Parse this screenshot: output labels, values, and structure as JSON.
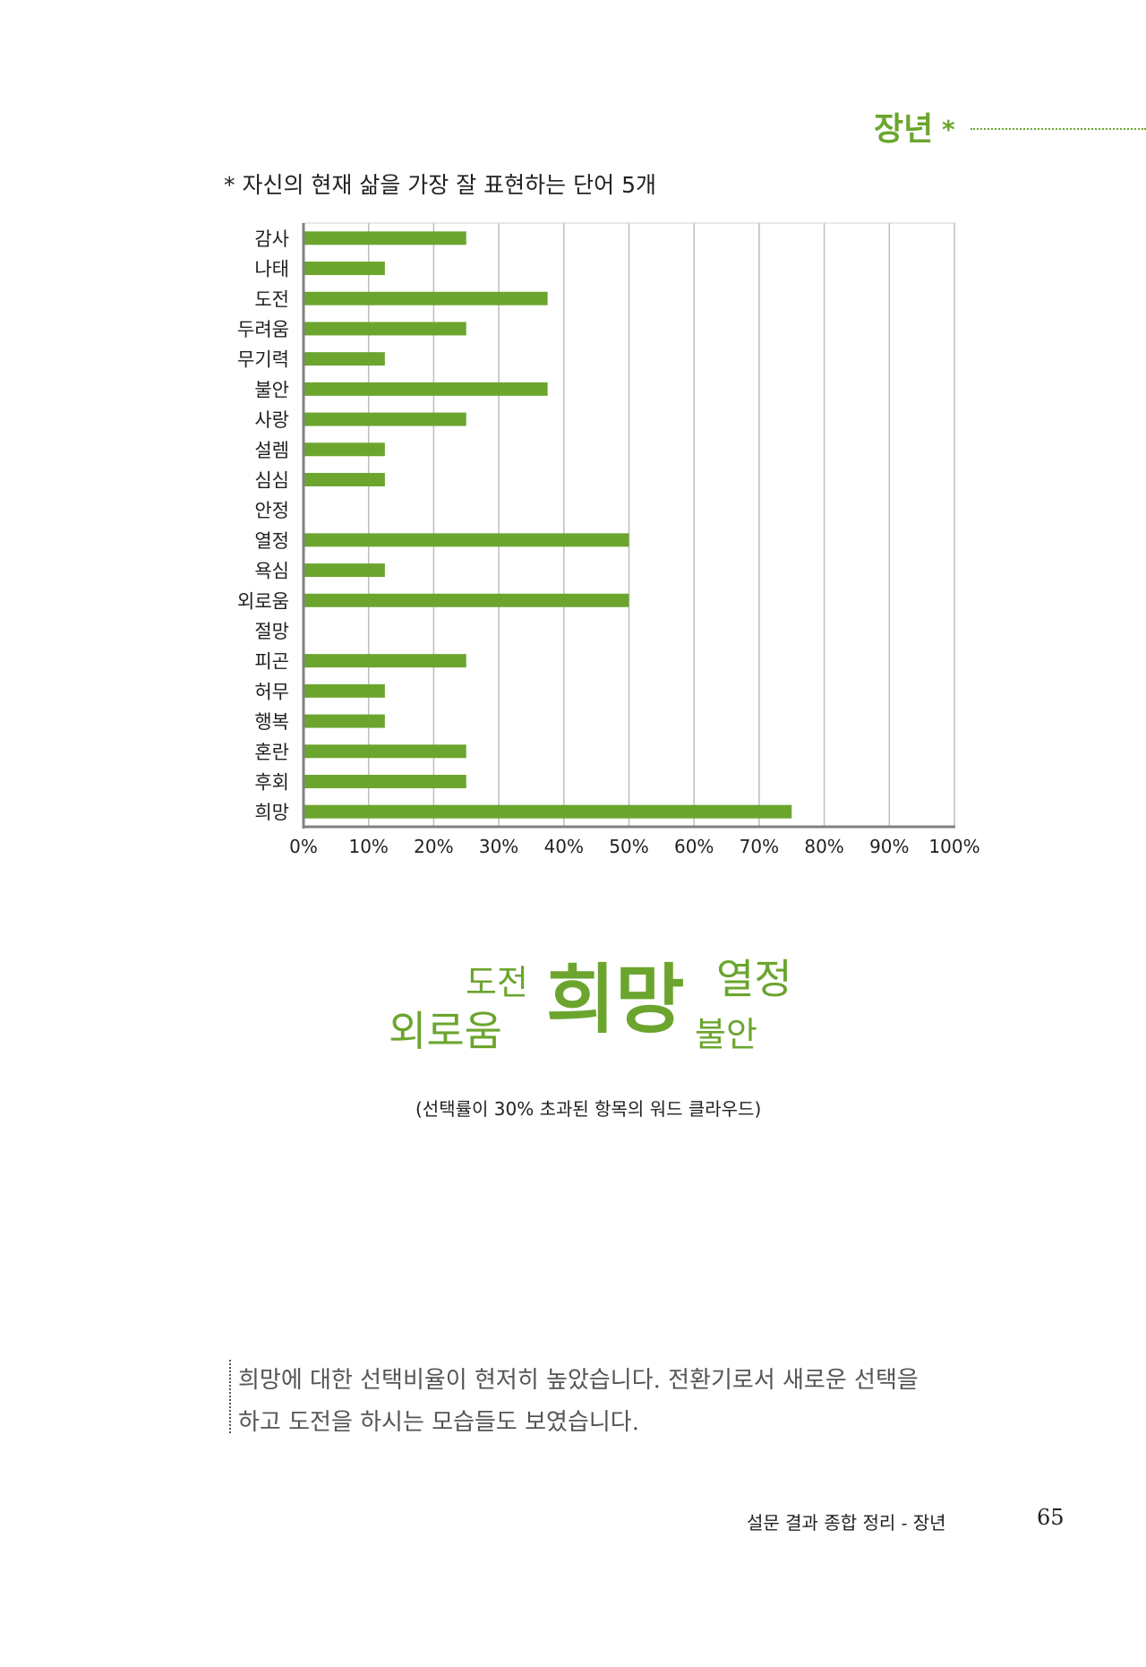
{
  "header": {
    "title": "장년",
    "asterisk": "*"
  },
  "chart_data": {
    "type": "bar",
    "orientation": "horizontal",
    "title": "* 자신의 현재 삶을 가장 잘 표현하는 단어 5개",
    "categories": [
      "감사",
      "나태",
      "도전",
      "두려움",
      "무기력",
      "불안",
      "사랑",
      "설렘",
      "심심",
      "안정",
      "열정",
      "욕심",
      "외로움",
      "절망",
      "피곤",
      "허무",
      "행복",
      "혼란",
      "후회",
      "희망"
    ],
    "values": [
      25,
      12.5,
      37.5,
      25,
      12.5,
      37.5,
      25,
      12.5,
      12.5,
      0,
      50,
      12.5,
      50,
      0,
      25,
      12.5,
      12.5,
      25,
      25,
      75
    ],
    "xlim": [
      0,
      100
    ],
    "x_ticks": [
      "0%",
      "10%",
      "20%",
      "30%",
      "40%",
      "50%",
      "60%",
      "70%",
      "80%",
      "90%",
      "100%"
    ],
    "grid": true,
    "bar_color": "#6ba52e"
  },
  "word_cloud": {
    "words": {
      "hope": "희망",
      "challenge": "도전",
      "loneliness": "외로움",
      "passion": "열정",
      "anxiety": "불안"
    },
    "caption": "(선택률이 30% 초과된 항목의 워드 클라우드)"
  },
  "summary": {
    "line1": "희망에 대한 선택비율이 현저히 높았습니다. 전환기로서 새로운 선택을",
    "line2": "하고 도전을 하시는 모습들도 보였습니다."
  },
  "footer": {
    "label": "설문 결과 종합 정리 - 장년",
    "page_number": "65"
  },
  "colors": {
    "accent": "#6ba52e",
    "text": "#231f20",
    "body_text": "#555555"
  }
}
